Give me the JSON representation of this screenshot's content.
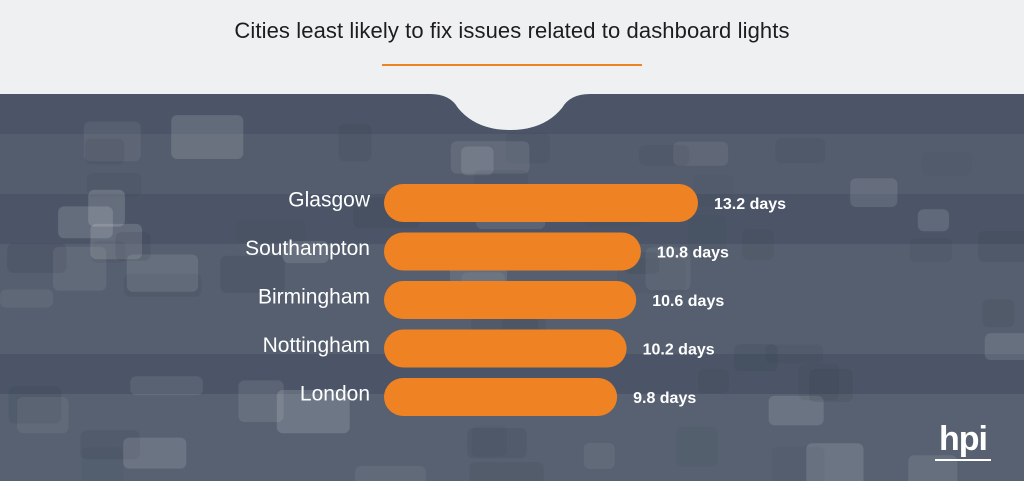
{
  "title": "Cities least likely to fix issues related to dashboard lights",
  "colors": {
    "accent": "#ef8223",
    "panel": "#4b5567",
    "header": "#eff0f1",
    "text_dark": "#1d1d1d",
    "text_light": "#ffffff"
  },
  "logo": {
    "text": "hpi"
  },
  "chart_data": {
    "type": "bar",
    "orientation": "horizontal",
    "categories": [
      "Glasgow",
      "Southampton",
      "Birmingham",
      "Nottingham",
      "London"
    ],
    "values": [
      13.2,
      10.8,
      10.6,
      10.2,
      9.8
    ],
    "value_labels": [
      "13.2 days",
      "10.8 days",
      "10.6 days",
      "10.2 days",
      "9.8 days"
    ],
    "title": "Cities least likely to fix issues related to dashboard lights",
    "xlabel": "",
    "ylabel": "",
    "xlim": [
      0,
      13.2
    ],
    "grid": false,
    "legend": "none"
  }
}
